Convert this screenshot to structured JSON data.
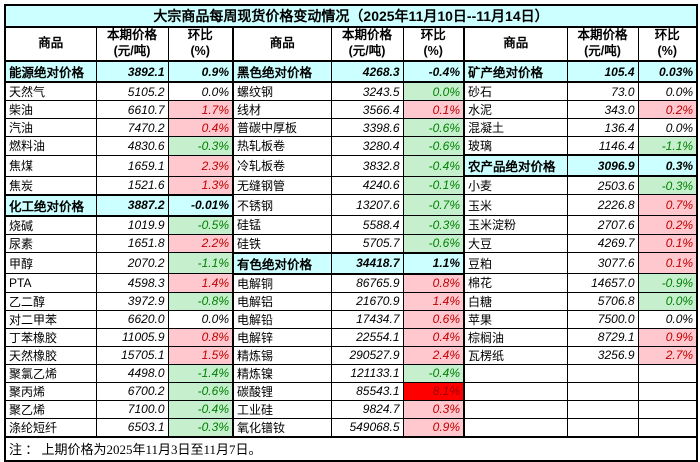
{
  "colors": {
    "section_bg": "#CCFFFF",
    "title_bg": "#CCFFFF",
    "up_bg": "#FFC7CE",
    "up_text": "#C00000",
    "down_bg": "#C6EFCE",
    "down_text": "#008000",
    "hot_bg": "#FF0000",
    "hot_text": "#9C0000",
    "border": "#000000"
  },
  "chart_data": {
    "type": "table",
    "title": "大宗商品每周现货价格变动情况（2025年11月10日--11月14日）",
    "note": "注 ： 上期价格为2025年11月3日至11月7日。",
    "header": {
      "commodity": "商品",
      "price_label": "本期价格",
      "price_unit": "(元/吨)",
      "pct_label": "环比",
      "pct_unit": "(%)"
    },
    "layout": {
      "row_count": 20,
      "group_count": 3
    },
    "groups": [
      {
        "name": "energy-chemicals-column",
        "rows": [
          {
            "name": "能源绝对价格",
            "price": "3892.1",
            "pct": "0.9%",
            "style": "section"
          },
          {
            "name": "天然气",
            "price": "5105.2",
            "pct": "0.0%",
            "style": "flat"
          },
          {
            "name": "柴油",
            "price": "6610.7",
            "pct": "1.7%",
            "style": "up"
          },
          {
            "name": "汽油",
            "price": "7470.2",
            "pct": "0.4%",
            "style": "up"
          },
          {
            "name": "燃料油",
            "price": "4830.6",
            "pct": "-0.3%",
            "style": "down"
          },
          {
            "name": "焦煤",
            "price": "1659.1",
            "pct": "2.3%",
            "style": "up"
          },
          {
            "name": "焦炭",
            "price": "1521.6",
            "pct": "1.3%",
            "style": "up"
          },
          {
            "name": "化工绝对价格",
            "price": "3887.2",
            "pct": "-0.01%",
            "style": "section"
          },
          {
            "name": "烧碱",
            "price": "1019.9",
            "pct": "-0.5%",
            "style": "down"
          },
          {
            "name": "尿素",
            "price": "1651.8",
            "pct": "2.2%",
            "style": "up"
          },
          {
            "name": "甲醇",
            "price": "2070.2",
            "pct": "-1.1%",
            "style": "down"
          },
          {
            "name": "PTA",
            "price": "4598.3",
            "pct": "1.4%",
            "style": "up"
          },
          {
            "name": "乙二醇",
            "price": "3972.9",
            "pct": "-0.8%",
            "style": "down"
          },
          {
            "name": "对二甲苯",
            "price": "6620.0",
            "pct": "0.0%",
            "style": "flat"
          },
          {
            "name": "丁苯橡胶",
            "price": "11005.9",
            "pct": "0.8%",
            "style": "up"
          },
          {
            "name": "天然橡胶",
            "price": "15705.1",
            "pct": "1.5%",
            "style": "up"
          },
          {
            "name": "聚氯乙烯",
            "price": "4498.0",
            "pct": "-1.4%",
            "style": "down"
          },
          {
            "name": "聚丙烯",
            "price": "6700.2",
            "pct": "-0.6%",
            "style": "down"
          },
          {
            "name": "聚乙烯",
            "price": "7100.0",
            "pct": "-0.4%",
            "style": "down"
          },
          {
            "name": "涤纶短纤",
            "price": "6503.1",
            "pct": "-0.3%",
            "style": "down"
          }
        ]
      },
      {
        "name": "ferrous-nonferrous-column",
        "rows": [
          {
            "name": "黑色绝对价格",
            "price": "4268.3",
            "pct": "-0.4%",
            "style": "section"
          },
          {
            "name": "螺纹钢",
            "price": "3243.5",
            "pct": "0.0%",
            "style": "down"
          },
          {
            "name": "线材",
            "price": "3566.4",
            "pct": "0.1%",
            "style": "up"
          },
          {
            "name": "普碳中厚板",
            "price": "3398.6",
            "pct": "-0.6%",
            "style": "down"
          },
          {
            "name": "热轧板卷",
            "price": "3280.4",
            "pct": "-0.6%",
            "style": "down"
          },
          {
            "name": "冷轧板卷",
            "price": "3832.8",
            "pct": "-0.4%",
            "style": "down"
          },
          {
            "name": "无缝钢管",
            "price": "4240.6",
            "pct": "-0.1%",
            "style": "down"
          },
          {
            "name": "不锈钢",
            "price": "13207.6",
            "pct": "-0.7%",
            "style": "down"
          },
          {
            "name": "硅锰",
            "price": "5588.4",
            "pct": "-0.3%",
            "style": "down"
          },
          {
            "name": "硅铁",
            "price": "5705.7",
            "pct": "-0.6%",
            "style": "down"
          },
          {
            "name": "有色绝对价格",
            "price": "34418.7",
            "pct": "1.1%",
            "style": "section"
          },
          {
            "name": "电解铜",
            "price": "86765.9",
            "pct": "0.8%",
            "style": "up"
          },
          {
            "name": "电解铝",
            "price": "21670.9",
            "pct": "1.4%",
            "style": "up"
          },
          {
            "name": "电解铅",
            "price": "17434.7",
            "pct": "0.6%",
            "style": "up"
          },
          {
            "name": "电解锌",
            "price": "22554.1",
            "pct": "0.4%",
            "style": "up"
          },
          {
            "name": "精炼锡",
            "price": "290527.9",
            "pct": "2.4%",
            "style": "up"
          },
          {
            "name": "精炼镍",
            "price": "121133.1",
            "pct": "-0.4%",
            "style": "down"
          },
          {
            "name": "碳酸锂",
            "price": "85543.1",
            "pct": "8.1%",
            "style": "hot"
          },
          {
            "name": "工业硅",
            "price": "9824.7",
            "pct": "0.3%",
            "style": "up"
          },
          {
            "name": "氧化镨钕",
            "price": "549068.5",
            "pct": "0.9%",
            "style": "up"
          }
        ]
      },
      {
        "name": "minerals-agriculture-column",
        "rows": [
          {
            "name": "矿产绝对价格",
            "price": "105.4",
            "pct": "0.03%",
            "style": "section"
          },
          {
            "name": "砂石",
            "price": "73.0",
            "pct": "0.0%",
            "style": "flat"
          },
          {
            "name": "水泥",
            "price": "343.0",
            "pct": "0.2%",
            "style": "up"
          },
          {
            "name": "混凝土",
            "price": "136.4",
            "pct": "0.0%",
            "style": "flat"
          },
          {
            "name": "玻璃",
            "price": "1146.4",
            "pct": "-1.1%",
            "style": "down"
          },
          {
            "name": "农产品绝对价格",
            "price": "3096.9",
            "pct": "0.3%",
            "style": "section"
          },
          {
            "name": "小麦",
            "price": "2503.6",
            "pct": "-0.3%",
            "style": "down"
          },
          {
            "name": "玉米",
            "price": "2226.8",
            "pct": "0.7%",
            "style": "up"
          },
          {
            "name": "玉米淀粉",
            "price": "2707.6",
            "pct": "0.2%",
            "style": "up"
          },
          {
            "name": "大豆",
            "price": "4269.7",
            "pct": "0.1%",
            "style": "up"
          },
          {
            "name": "豆粕",
            "price": "3077.6",
            "pct": "0.1%",
            "style": "up"
          },
          {
            "name": "棉花",
            "price": "14657.0",
            "pct": "-0.9%",
            "style": "down"
          },
          {
            "name": "白糖",
            "price": "5706.8",
            "pct": "0.0%",
            "style": "down"
          },
          {
            "name": "苹果",
            "price": "7500.0",
            "pct": "0.0%",
            "style": "flat"
          },
          {
            "name": "棕榈油",
            "price": "8729.1",
            "pct": "0.9%",
            "style": "up"
          },
          {
            "name": "瓦楞纸",
            "price": "3256.9",
            "pct": "2.7%",
            "style": "up"
          },
          {
            "name": "",
            "price": "",
            "pct": "",
            "style": "empty"
          },
          {
            "name": "",
            "price": "",
            "pct": "",
            "style": "empty"
          },
          {
            "name": "",
            "price": "",
            "pct": "",
            "style": "empty"
          },
          {
            "name": "",
            "price": "",
            "pct": "",
            "style": "empty"
          }
        ]
      }
    ]
  }
}
